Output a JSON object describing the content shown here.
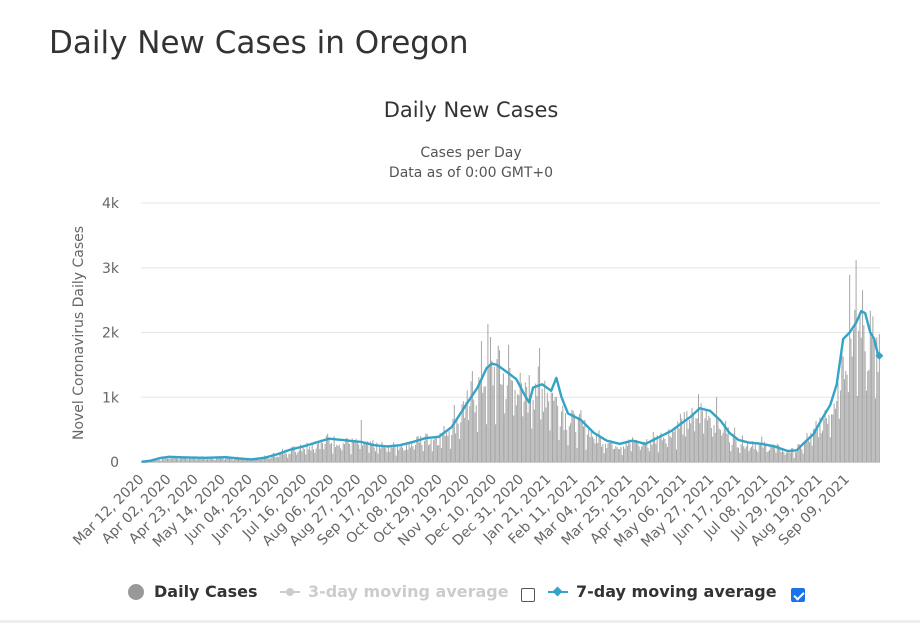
{
  "page": {
    "title": "Daily New Cases in Oregon"
  },
  "colors": {
    "bars": "#a6a6a6",
    "line": "#33a3c6",
    "grid": "#e6e6e6",
    "axis_text": "#666666",
    "title_text": "#333333",
    "disabled": "#cccccc"
  },
  "chart_data": {
    "type": "bar",
    "title": "Daily New Cases",
    "subtitle_lines": [
      "Cases per Day",
      "Data as of 0:00 GMT+0"
    ],
    "ylabel": "Novel Coronavirus Daily Cases",
    "xlabel": "",
    "ylim": [
      0,
      4000
    ],
    "y_ticks": [
      {
        "value": 0,
        "label": "0"
      },
      {
        "value": 1000,
        "label": "1k"
      },
      {
        "value": 2000,
        "label": "2k"
      },
      {
        "value": 3000,
        "label": "3k"
      },
      {
        "value": 4000,
        "label": "4k"
      }
    ],
    "start_date": "2020-03-12",
    "num_days": 572,
    "x_tick_labels": [
      "Mar 12, 2020",
      "Apr 02, 2020",
      "Apr 23, 2020",
      "May 14, 2020",
      "Jun 04, 2020",
      "Jun 25, 2020",
      "Jul 16, 2020",
      "Aug 06, 2020",
      "Aug 27, 2020",
      "Sep 17, 2020",
      "Oct 08, 2020",
      "Oct 29, 2020",
      "Nov 19, 2020",
      "Dec 10, 2020",
      "Dec 31, 2020",
      "Jan 21, 2021",
      "Feb 11, 2021",
      "Mar 04, 2021",
      "Mar 25, 2021",
      "Apr 15, 2021",
      "May 06, 2021",
      "May 27, 2021",
      "Jun 17, 2021",
      "Jul 08, 2021",
      "Jul 29, 2021",
      "Aug 19, 2021",
      "Sep 09, 2021"
    ],
    "tick_interval_days": 21,
    "series": [
      {
        "name": "Daily Cases",
        "type": "bar",
        "approximate_shape_keypoints": [
          [
            0,
            5
          ],
          [
            7,
            15
          ],
          [
            14,
            40
          ],
          [
            21,
            80
          ],
          [
            35,
            70
          ],
          [
            50,
            60
          ],
          [
            65,
            70
          ],
          [
            75,
            60
          ],
          [
            85,
            40
          ],
          [
            95,
            70
          ],
          [
            105,
            120
          ],
          [
            115,
            200
          ],
          [
            125,
            260
          ],
          [
            135,
            300
          ],
          [
            145,
            360
          ],
          [
            155,
            330
          ],
          [
            170,
            300
          ],
          [
            180,
            250
          ],
          [
            190,
            240
          ],
          [
            200,
            260
          ],
          [
            210,
            320
          ],
          [
            220,
            380
          ],
          [
            230,
            400
          ],
          [
            240,
            600
          ],
          [
            250,
            900
          ],
          [
            260,
            1200
          ],
          [
            267,
            1480
          ],
          [
            275,
            1520
          ],
          [
            282,
            1400
          ],
          [
            290,
            1300
          ],
          [
            296,
            1050
          ],
          [
            303,
            1250
          ],
          [
            310,
            1200
          ],
          [
            317,
            1150
          ],
          [
            322,
            950
          ],
          [
            330,
            700
          ],
          [
            340,
            600
          ],
          [
            350,
            450
          ],
          [
            360,
            330
          ],
          [
            370,
            280
          ],
          [
            380,
            330
          ],
          [
            390,
            300
          ],
          [
            400,
            400
          ],
          [
            410,
            500
          ],
          [
            418,
            620
          ],
          [
            425,
            700
          ],
          [
            432,
            830
          ],
          [
            440,
            800
          ],
          [
            448,
            650
          ],
          [
            455,
            450
          ],
          [
            462,
            350
          ],
          [
            470,
            310
          ],
          [
            480,
            280
          ],
          [
            490,
            250
          ],
          [
            500,
            170
          ],
          [
            507,
            190
          ],
          [
            513,
            300
          ],
          [
            520,
            450
          ],
          [
            527,
            700
          ],
          [
            533,
            900
          ],
          [
            538,
            1200
          ],
          [
            543,
            1900
          ],
          [
            548,
            2050
          ],
          [
            553,
            2100
          ],
          [
            557,
            2300
          ],
          [
            561,
            2200
          ],
          [
            565,
            1900
          ],
          [
            568,
            1700
          ],
          [
            571,
            1650
          ]
        ],
        "spike_values": [
          [
            170,
            650
          ],
          [
            268,
            2130
          ],
          [
            308,
            1760
          ],
          [
            548,
            2890
          ],
          [
            553,
            3120
          ],
          [
            566,
            2250
          ]
        ]
      },
      {
        "name": "3-day moving average",
        "type": "line",
        "visible": false
      },
      {
        "name": "7-day moving average",
        "type": "line",
        "visible": true,
        "keypoints": [
          [
            0,
            5
          ],
          [
            7,
            20
          ],
          [
            14,
            60
          ],
          [
            21,
            80
          ],
          [
            35,
            70
          ],
          [
            50,
            65
          ],
          [
            65,
            75
          ],
          [
            75,
            55
          ],
          [
            85,
            40
          ],
          [
            95,
            65
          ],
          [
            105,
            120
          ],
          [
            115,
            190
          ],
          [
            125,
            240
          ],
          [
            135,
            300
          ],
          [
            145,
            360
          ],
          [
            155,
            340
          ],
          [
            170,
            310
          ],
          [
            180,
            260
          ],
          [
            190,
            240
          ],
          [
            200,
            260
          ],
          [
            210,
            310
          ],
          [
            220,
            370
          ],
          [
            230,
            390
          ],
          [
            240,
            540
          ],
          [
            250,
            850
          ],
          [
            260,
            1150
          ],
          [
            267,
            1450
          ],
          [
            271,
            1520
          ],
          [
            275,
            1500
          ],
          [
            282,
            1400
          ],
          [
            290,
            1280
          ],
          [
            296,
            1050
          ],
          [
            300,
            920
          ],
          [
            303,
            1150
          ],
          [
            310,
            1200
          ],
          [
            317,
            1100
          ],
          [
            321,
            1300
          ],
          [
            325,
            1000
          ],
          [
            330,
            750
          ],
          [
            340,
            650
          ],
          [
            350,
            450
          ],
          [
            360,
            330
          ],
          [
            370,
            280
          ],
          [
            380,
            330
          ],
          [
            390,
            280
          ],
          [
            400,
            380
          ],
          [
            410,
            480
          ],
          [
            418,
            600
          ],
          [
            425,
            700
          ],
          [
            432,
            830
          ],
          [
            440,
            790
          ],
          [
            448,
            640
          ],
          [
            455,
            450
          ],
          [
            462,
            340
          ],
          [
            470,
            300
          ],
          [
            480,
            280
          ],
          [
            490,
            240
          ],
          [
            500,
            170
          ],
          [
            507,
            180
          ],
          [
            513,
            300
          ],
          [
            520,
            430
          ],
          [
            527,
            680
          ],
          [
            533,
            880
          ],
          [
            538,
            1200
          ],
          [
            543,
            1900
          ],
          [
            548,
            2000
          ],
          [
            553,
            2150
          ],
          [
            557,
            2330
          ],
          [
            560,
            2300
          ],
          [
            564,
            2000
          ],
          [
            567,
            1900
          ],
          [
            570,
            1650
          ],
          [
            571,
            1640
          ]
        ]
      }
    ]
  },
  "legend": [
    {
      "label": "Daily Cases",
      "enabled": true
    },
    {
      "label": "3-day moving average",
      "enabled": false,
      "checkbox_checked": false
    },
    {
      "label": "7-day moving average",
      "enabled": true,
      "checkbox_checked": true
    }
  ]
}
